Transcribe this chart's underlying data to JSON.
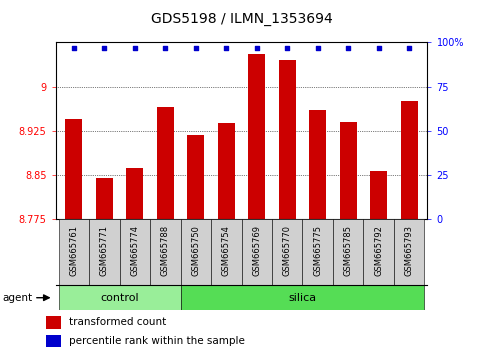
{
  "title": "GDS5198 / ILMN_1353694",
  "samples": [
    "GSM665761",
    "GSM665771",
    "GSM665774",
    "GSM665788",
    "GSM665750",
    "GSM665754",
    "GSM665769",
    "GSM665770",
    "GSM665775",
    "GSM665785",
    "GSM665792",
    "GSM665793"
  ],
  "n_control": 4,
  "n_silica": 8,
  "bar_values": [
    8.945,
    8.845,
    8.862,
    8.965,
    8.918,
    8.938,
    9.055,
    9.045,
    8.96,
    8.94,
    8.858,
    8.975
  ],
  "percentile_values": [
    97,
    97,
    97,
    97,
    97,
    97,
    97,
    97,
    97,
    97,
    97,
    97
  ],
  "ylim_left": [
    8.775,
    9.075
  ],
  "ylim_right": [
    0,
    100
  ],
  "yticks_left": [
    8.775,
    8.85,
    8.925,
    9.0
  ],
  "yticks_right": [
    0,
    25,
    50,
    75,
    100
  ],
  "ytick_labels_left": [
    "8.775",
    "8.85",
    "8.925",
    "9"
  ],
  "ytick_labels_right": [
    "0",
    "25",
    "50",
    "75",
    "100%"
  ],
  "bar_color": "#cc0000",
  "dot_color": "#0000cc",
  "control_color": "#99ee99",
  "silica_color": "#55dd55",
  "sample_box_color": "#d0d0d0",
  "agent_label": "agent",
  "legend_bar_label": "transformed count",
  "legend_dot_label": "percentile rank within the sample",
  "control_label": "control",
  "silica_label": "silica",
  "bg_color": "#ffffff",
  "bar_width": 0.55,
  "title_fontsize": 10,
  "tick_fontsize": 7,
  "sample_fontsize": 6,
  "group_fontsize": 8,
  "legend_fontsize": 7.5,
  "agent_fontsize": 7.5
}
